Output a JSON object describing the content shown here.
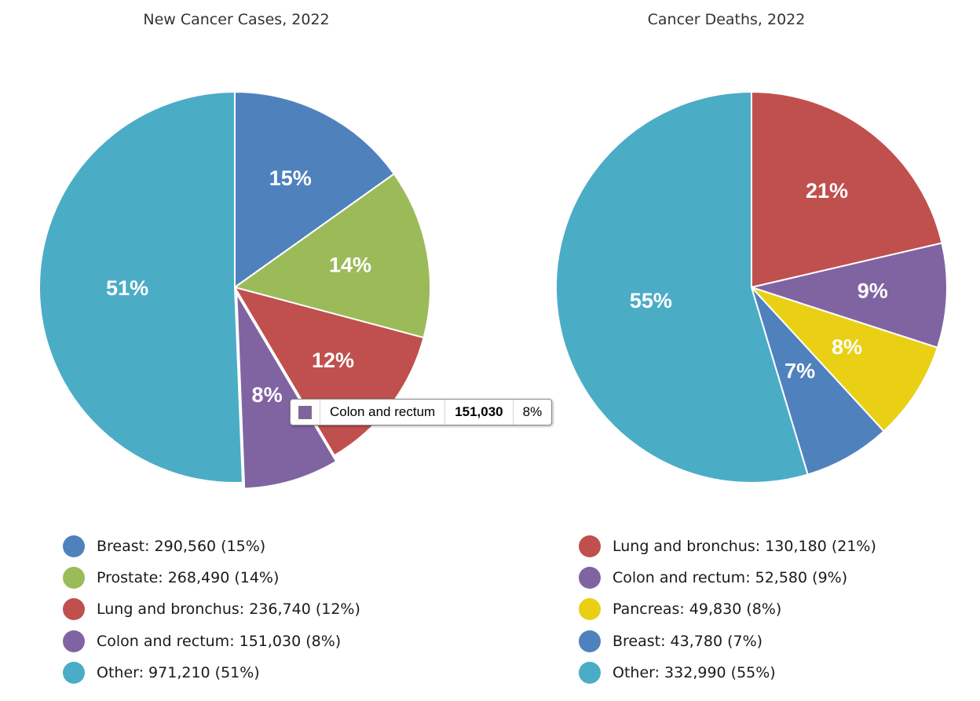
{
  "chart_data": [
    {
      "type": "pie",
      "title": "New Cancer Cases, 2022",
      "start_angle_deg": 0,
      "direction": "clockwise",
      "exploded_slice": "Colon and rectum",
      "slices": [
        {
          "label": "Breast",
          "value": 290560,
          "percent": "15%",
          "color": "#4f81bd",
          "legend": "Breast: 290,560 (15%)"
        },
        {
          "label": "Prostate",
          "value": 268490,
          "percent": "14%",
          "color": "#9bbb59",
          "legend": "Prostate: 268,490 (14%)"
        },
        {
          "label": "Lung and bronchus",
          "value": 236740,
          "percent": "12%",
          "color": "#c0504d",
          "legend": "Lung and bronchus: 236,740 (12%)"
        },
        {
          "label": "Colon and rectum",
          "value": 151030,
          "percent": "8%",
          "color": "#8064a2",
          "legend": "Colon and rectum: 151,030 (8%)"
        },
        {
          "label": "Other",
          "value": 971210,
          "percent": "51%",
          "color": "#4bacc6",
          "legend": "Other: 971,210 (51%)"
        }
      ],
      "legend_position": "bottom",
      "tooltip": {
        "label": "Colon and rectum",
        "value": "151,030",
        "percent": "8%",
        "color": "#8064a2"
      }
    },
    {
      "type": "pie",
      "title": "Cancer Deaths, 2022",
      "start_angle_deg": 0,
      "direction": "clockwise",
      "slices": [
        {
          "label": "Lung and bronchus",
          "value": 130180,
          "percent": "21%",
          "color": "#c0504d",
          "legend": "Lung and bronchus: 130,180 (21%)"
        },
        {
          "label": "Colon and rectum",
          "value": 52580,
          "percent": "9%",
          "color": "#8064a2",
          "legend": "Colon and rectum: 52,580 (9%)"
        },
        {
          "label": "Pancreas",
          "value": 49830,
          "percent": "8%",
          "color": "#e9d015",
          "legend": "Pancreas: 49,830 (8%)"
        },
        {
          "label": "Breast",
          "value": 43780,
          "percent": "7%",
          "color": "#4f81bd",
          "legend": "Breast: 43,780 (7%)"
        },
        {
          "label": "Other",
          "value": 332990,
          "percent": "55%",
          "color": "#4bacc6",
          "legend": "Other: 332,990 (55%)"
        }
      ],
      "legend_position": "bottom"
    }
  ]
}
